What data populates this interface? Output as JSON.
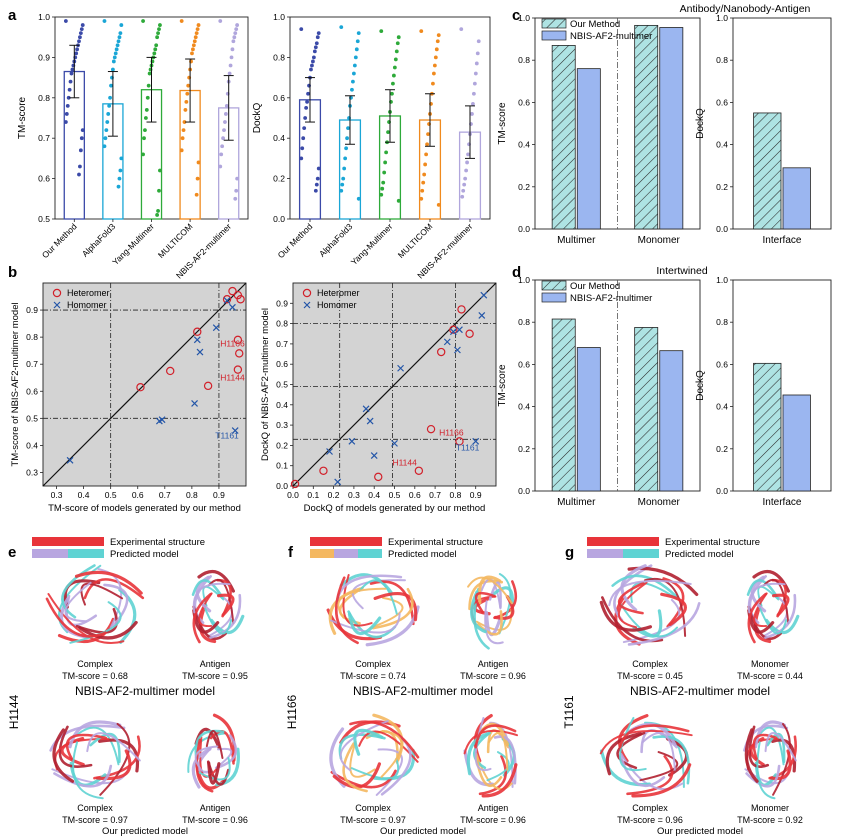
{
  "panel_letters": {
    "a": "a",
    "b": "b",
    "c": "c",
    "d": "d",
    "e": "e",
    "f": "f",
    "g": "g"
  },
  "c_title": "Antibody/Nanobody-Antigen",
  "d_title": "Intertwined",
  "legend_bar": [
    "Our Method",
    "NBIS-AF2-multimer"
  ],
  "legend_scatter": [
    "Heteromer",
    "Homomer"
  ],
  "colors": {
    "our_method": "#3b4aa8",
    "alphafold3": "#1aa6d6",
    "yang": "#2eaa3a",
    "multicom": "#f08a1e",
    "nbis": "#b0a6dc",
    "hatch_fill": "#aee3e3",
    "nbis_bar": "#9bb6f0",
    "heteromer": "#d2202a",
    "homomer": "#2456a8",
    "panel_bg": "#d3d3d3",
    "exp_structure": "#e8343a",
    "pred_purple": "#b8a6e0",
    "pred_cyan": "#5fd3d3",
    "pred_orange": "#f4b860"
  },
  "chart_data": [
    {
      "id": "a-left",
      "type": "bar",
      "categories": [
        "Our Method",
        "AlphaFold3",
        "Yang-Multimer",
        "MULTICOM",
        "NBIS-AF2-multimer"
      ],
      "values": [
        0.865,
        0.785,
        0.82,
        0.818,
        0.775
      ],
      "errors": [
        0.065,
        0.08,
        0.08,
        0.078,
        0.08
      ],
      "ylabel": "TM-score",
      "ylim": [
        0.5,
        1.0
      ],
      "yticks": [
        "0.5",
        "0.6",
        "0.7",
        "0.8",
        "0.9",
        "1.0"
      ],
      "points": [
        [
          0.99,
          0.98,
          0.97,
          0.96,
          0.95,
          0.94,
          0.93,
          0.92,
          0.91,
          0.9,
          0.89,
          0.88,
          0.87,
          0.86,
          0.84,
          0.82,
          0.8,
          0.78,
          0.76,
          0.74,
          0.72,
          0.7,
          0.67,
          0.63,
          0.61
        ],
        [
          0.99,
          0.98,
          0.96,
          0.95,
          0.94,
          0.93,
          0.92,
          0.91,
          0.9,
          0.89,
          0.87,
          0.85,
          0.83,
          0.8,
          0.78,
          0.76,
          0.74,
          0.72,
          0.7,
          0.68,
          0.65,
          0.62,
          0.6,
          0.58
        ],
        [
          0.99,
          0.98,
          0.97,
          0.96,
          0.95,
          0.93,
          0.92,
          0.91,
          0.9,
          0.89,
          0.88,
          0.87,
          0.86,
          0.83,
          0.8,
          0.77,
          0.75,
          0.72,
          0.7,
          0.66,
          0.62,
          0.57,
          0.52,
          0.51
        ],
        [
          0.99,
          0.98,
          0.97,
          0.96,
          0.95,
          0.94,
          0.93,
          0.92,
          0.91,
          0.89,
          0.87,
          0.85,
          0.83,
          0.81,
          0.79,
          0.77,
          0.74,
          0.72,
          0.7,
          0.67,
          0.64,
          0.6,
          0.56
        ],
        [
          0.99,
          0.98,
          0.97,
          0.96,
          0.95,
          0.94,
          0.92,
          0.9,
          0.88,
          0.86,
          0.84,
          0.81,
          0.78,
          0.76,
          0.74,
          0.72,
          0.7,
          0.68,
          0.66,
          0.63,
          0.6,
          0.57,
          0.55
        ]
      ]
    },
    {
      "id": "a-right",
      "type": "bar",
      "categories": [
        "Our Method",
        "AlphaFold3",
        "Yang-Multimer",
        "MULTICOM",
        "NBIS-AF2-multimer"
      ],
      "values": [
        0.59,
        0.49,
        0.51,
        0.49,
        0.43
      ],
      "errors": [
        0.11,
        0.12,
        0.13,
        0.13,
        0.13
      ],
      "ylabel": "DockQ",
      "ylim": [
        0.0,
        1.0
      ],
      "yticks": [
        "0.0",
        "0.2",
        "0.4",
        "0.6",
        "0.8",
        "1.0"
      ],
      "points": [
        [
          0.94,
          0.92,
          0.9,
          0.87,
          0.85,
          0.83,
          0.8,
          0.78,
          0.76,
          0.74,
          0.7,
          0.66,
          0.62,
          0.58,
          0.55,
          0.5,
          0.45,
          0.4,
          0.35,
          0.3,
          0.25,
          0.2,
          0.17,
          0.14
        ],
        [
          0.95,
          0.92,
          0.88,
          0.84,
          0.8,
          0.76,
          0.72,
          0.68,
          0.64,
          0.6,
          0.56,
          0.5,
          0.45,
          0.4,
          0.35,
          0.3,
          0.25,
          0.2,
          0.17,
          0.14,
          0.1
        ],
        [
          0.93,
          0.9,
          0.87,
          0.83,
          0.79,
          0.75,
          0.71,
          0.67,
          0.62,
          0.58,
          0.53,
          0.48,
          0.43,
          0.38,
          0.33,
          0.28,
          0.23,
          0.18,
          0.15,
          0.12,
          0.09
        ],
        [
          0.93,
          0.91,
          0.88,
          0.84,
          0.8,
          0.76,
          0.72,
          0.67,
          0.62,
          0.57,
          0.52,
          0.47,
          0.42,
          0.37,
          0.32,
          0.27,
          0.22,
          0.18,
          0.14,
          0.1,
          0.07
        ],
        [
          0.94,
          0.88,
          0.82,
          0.77,
          0.72,
          0.67,
          0.62,
          0.57,
          0.52,
          0.47,
          0.42,
          0.37,
          0.32,
          0.28,
          0.24,
          0.2,
          0.17,
          0.14,
          0.11
        ]
      ]
    },
    {
      "id": "b-left",
      "type": "scatter",
      "xlabel": "TM-score of models generated by our method",
      "ylabel": "TM-score of NBIS-AF2-multimer model",
      "xlim": [
        0.25,
        1.0
      ],
      "ylim": [
        0.25,
        1.0
      ],
      "ticks": [
        "0.3",
        "0.4",
        "0.5",
        "0.6",
        "0.7",
        "0.8",
        "0.9"
      ],
      "ref_lines": [
        0.5,
        0.9
      ],
      "heteromer": [
        [
          0.61,
          0.615
        ],
        [
          0.72,
          0.675
        ],
        [
          0.82,
          0.82
        ],
        [
          0.86,
          0.62
        ],
        [
          0.93,
          0.94
        ],
        [
          0.95,
          0.97
        ],
        [
          0.97,
          0.955
        ],
        [
          0.98,
          0.94
        ],
        [
          0.97,
          0.79
        ],
        [
          0.975,
          0.74
        ],
        [
          0.97,
          0.68
        ]
      ],
      "homomer": [
        [
          0.35,
          0.345
        ],
        [
          0.68,
          0.49
        ],
        [
          0.69,
          0.495
        ],
        [
          0.81,
          0.555
        ],
        [
          0.82,
          0.79
        ],
        [
          0.83,
          0.745
        ],
        [
          0.89,
          0.835
        ],
        [
          0.93,
          0.935
        ],
        [
          0.95,
          0.91
        ],
        [
          0.96,
          0.455
        ]
      ],
      "labels": [
        {
          "text": "H1166",
          "x": 0.95,
          "y": 0.765,
          "series": "heteromer"
        },
        {
          "text": "H1144",
          "x": 0.95,
          "y": 0.64,
          "series": "heteromer"
        },
        {
          "text": "T1161",
          "x": 0.93,
          "y": 0.425,
          "series": "homomer"
        }
      ]
    },
    {
      "id": "b-right",
      "type": "scatter",
      "xlabel": "DockQ of models generated by our method",
      "ylabel": "DockQ of NBIS-AF2-multimer model",
      "xlim": [
        0.0,
        1.0
      ],
      "ylim": [
        0.0,
        1.0
      ],
      "ticks": [
        "0.0",
        "0.1",
        "0.2",
        "0.3",
        "0.4",
        "0.5",
        "0.6",
        "0.7",
        "0.8",
        "0.9"
      ],
      "ref_lines": [
        0.23,
        0.49,
        0.8
      ],
      "heteromer": [
        [
          0.01,
          0.01
        ],
        [
          0.15,
          0.075
        ],
        [
          0.42,
          0.045
        ],
        [
          0.62,
          0.075
        ],
        [
          0.68,
          0.28
        ],
        [
          0.73,
          0.66
        ],
        [
          0.79,
          0.77
        ],
        [
          0.83,
          0.87
        ],
        [
          0.87,
          0.75
        ],
        [
          0.82,
          0.22
        ]
      ],
      "homomer": [
        [
          0.18,
          0.17
        ],
        [
          0.22,
          0.02
        ],
        [
          0.29,
          0.22
        ],
        [
          0.36,
          0.38
        ],
        [
          0.38,
          0.32
        ],
        [
          0.4,
          0.15
        ],
        [
          0.5,
          0.21
        ],
        [
          0.53,
          0.58
        ],
        [
          0.76,
          0.71
        ],
        [
          0.79,
          0.76
        ],
        [
          0.81,
          0.67
        ],
        [
          0.82,
          0.77
        ],
        [
          0.93,
          0.84
        ],
        [
          0.94,
          0.94
        ],
        [
          0.9,
          0.22
        ]
      ],
      "labels": [
        {
          "text": "H1166",
          "x": 0.78,
          "y": 0.25,
          "series": "heteromer"
        },
        {
          "text": "H1144",
          "x": 0.55,
          "y": 0.1,
          "series": "heteromer"
        },
        {
          "text": "T1161",
          "x": 0.86,
          "y": 0.175,
          "series": "homomer"
        }
      ]
    },
    {
      "id": "c-tm",
      "type": "bar",
      "ylabel": "TM-score",
      "ylim": [
        0,
        1.0
      ],
      "yticks": [
        "0.0",
        "0.2",
        "0.4",
        "0.6",
        "0.8",
        "1.0"
      ],
      "categories": [
        "Multimer",
        "Monomer"
      ],
      "series": [
        {
          "name": "Our Method",
          "values": [
            0.87,
            0.965
          ]
        },
        {
          "name": "NBIS-AF2-multimer",
          "values": [
            0.76,
            0.955
          ]
        }
      ]
    },
    {
      "id": "c-dq",
      "type": "bar",
      "ylabel": "DockQ",
      "ylim": [
        0,
        1.0
      ],
      "yticks": [
        "0.0",
        "0.2",
        "0.4",
        "0.6",
        "0.8",
        "1.0"
      ],
      "categories": [
        "Interface"
      ],
      "series": [
        {
          "name": "Our Method",
          "values": [
            0.55
          ]
        },
        {
          "name": "NBIS-AF2-multimer",
          "values": [
            0.29
          ]
        }
      ]
    },
    {
      "id": "d-tm",
      "type": "bar",
      "ylabel": "TM-score",
      "ylim": [
        0,
        1.0
      ],
      "yticks": [
        "0.0",
        "0.2",
        "0.4",
        "0.6",
        "0.8",
        "1.0"
      ],
      "categories": [
        "Multimer",
        "Monomer"
      ],
      "series": [
        {
          "name": "Our Method",
          "values": [
            0.815,
            0.775
          ]
        },
        {
          "name": "NBIS-AF2-multimer",
          "values": [
            0.68,
            0.665
          ]
        }
      ]
    },
    {
      "id": "d-dq",
      "type": "bar",
      "ylabel": "DockQ",
      "ylim": [
        0,
        1.0
      ],
      "yticks": [
        "0.0",
        "0.2",
        "0.4",
        "0.6",
        "0.8",
        "1.0"
      ],
      "categories": [
        "Interface"
      ],
      "series": [
        {
          "name": "Our Method",
          "values": [
            0.605
          ]
        },
        {
          "name": "NBIS-AF2-multimer",
          "values": [
            0.455
          ]
        }
      ]
    }
  ],
  "structures": {
    "legend_experimental": "Experimental structure",
    "legend_predicted": "Predicted model",
    "nbis_title": "NBIS-AF2-multimer model",
    "ours_title": "Our predicted model",
    "e": {
      "target": "H1144",
      "top": [
        {
          "name": "Complex",
          "score": "TM-score = 0.68"
        },
        {
          "name": "Antigen",
          "score": "TM-score = 0.95"
        }
      ],
      "bottom": [
        {
          "name": "Complex",
          "score": "TM-score = 0.97"
        },
        {
          "name": "Antigen",
          "score": "TM-score = 0.96"
        }
      ]
    },
    "f": {
      "target": "H1166",
      "top": [
        {
          "name": "Complex",
          "score": "TM-score = 0.74"
        },
        {
          "name": "Antigen",
          "score": "TM-score = 0.96"
        }
      ],
      "bottom": [
        {
          "name": "Complex",
          "score": "TM-score = 0.97"
        },
        {
          "name": "Antigen",
          "score": "TM-score = 0.96"
        }
      ]
    },
    "g": {
      "target": "T1161",
      "top": [
        {
          "name": "Complex",
          "score": "TM-score = 0.45"
        },
        {
          "name": "Monomer",
          "score": "TM-score = 0.44"
        }
      ],
      "bottom": [
        {
          "name": "Complex",
          "score": "TM-score = 0.96"
        },
        {
          "name": "Monomer",
          "score": "TM-score = 0.92"
        }
      ]
    }
  }
}
